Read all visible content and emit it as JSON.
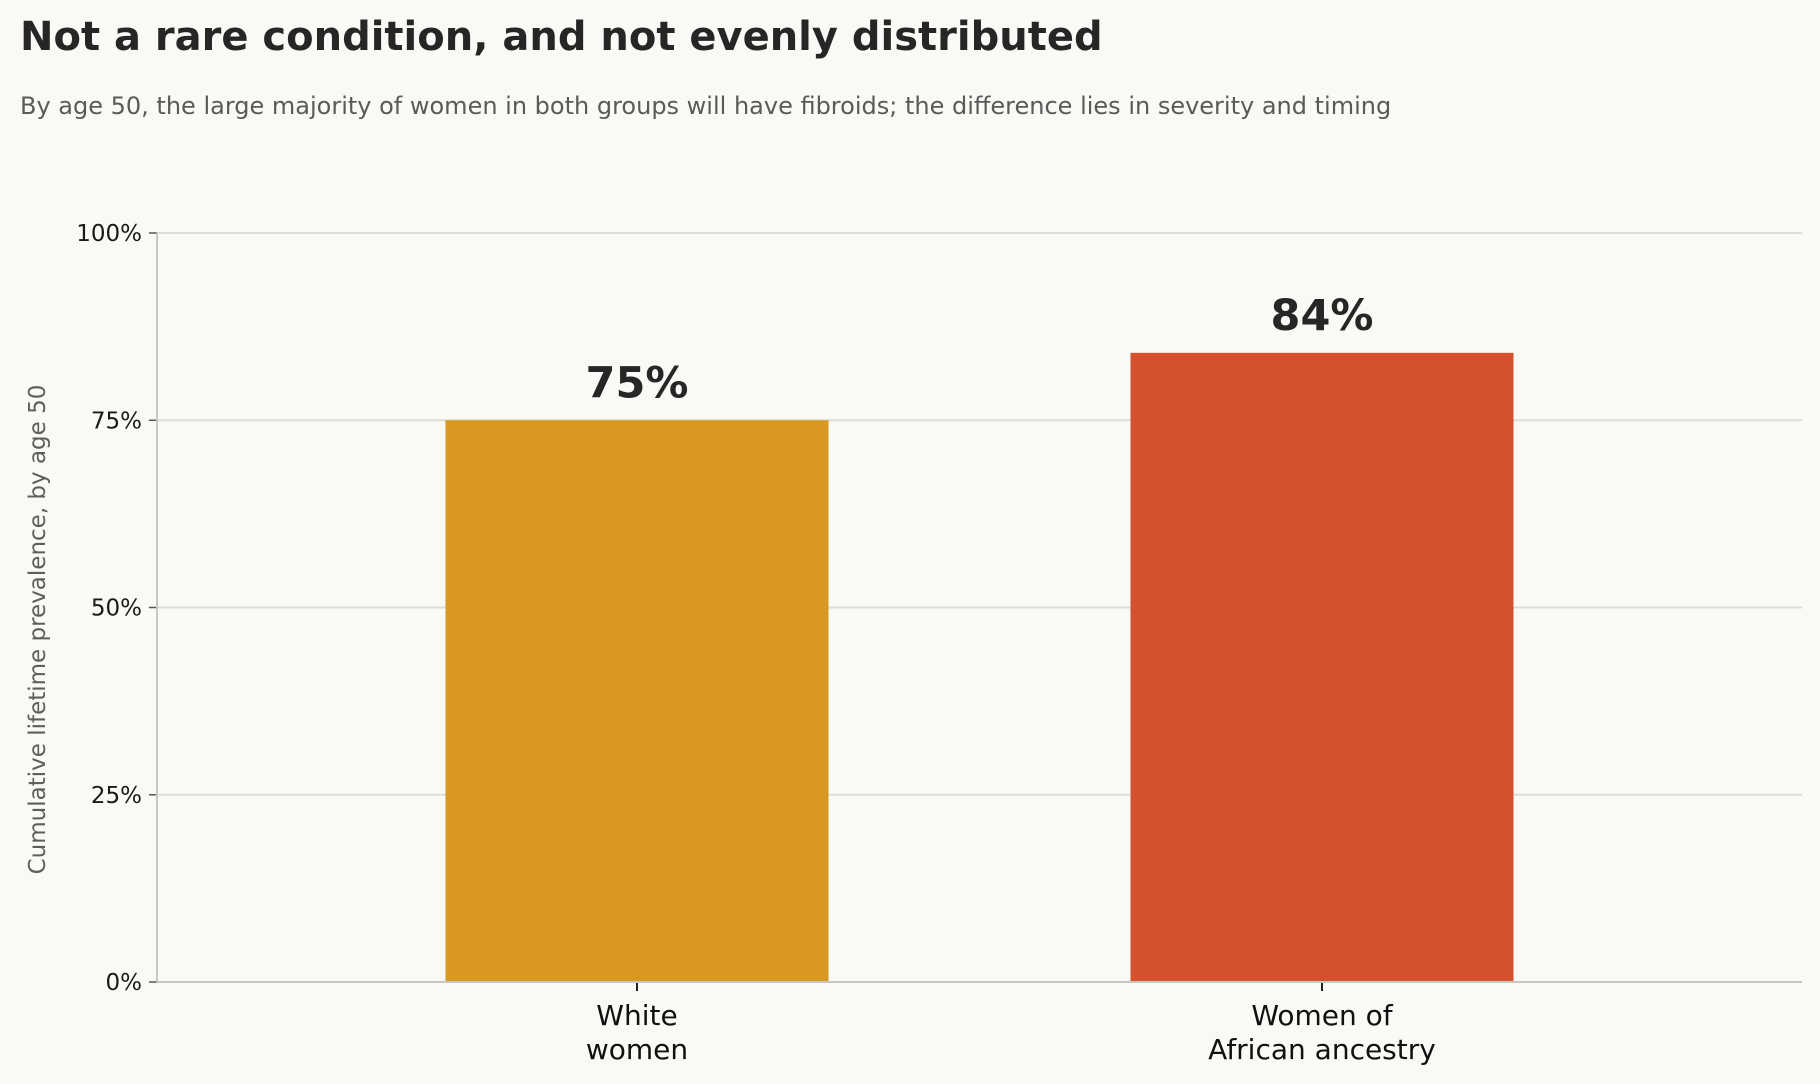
{
  "title": "Not a rare condition, and not evenly distributed",
  "subtitle": "By age 50, the large majority of women in both groups will have fibroids; the difference lies in severity and timing",
  "chart_data": {
    "type": "bar",
    "categories": [
      [
        "White",
        "women"
      ],
      [
        "Women of",
        "African ancestry"
      ]
    ],
    "values": [
      75,
      84
    ],
    "value_labels": [
      "75%",
      "84%"
    ],
    "colors": [
      "#d9981f",
      "#d4512e"
    ],
    "ylabel": "Cumulative lifetime prevalence, by age 50",
    "ylim": [
      0,
      100
    ],
    "yticks": [
      0,
      25,
      50,
      75,
      100
    ],
    "ytick_labels": [
      "0%",
      "25%",
      "50%",
      "75%",
      "100%"
    ],
    "grid": true,
    "legend": "none"
  }
}
